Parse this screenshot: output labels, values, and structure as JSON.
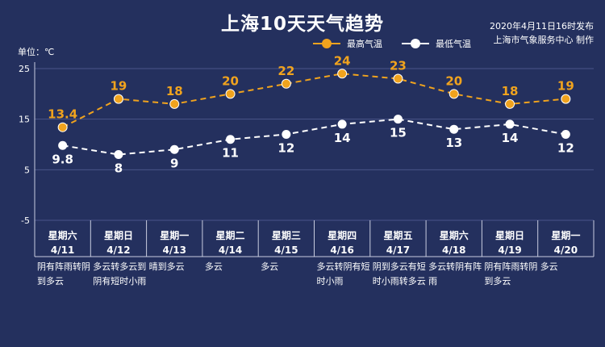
{
  "header": {
    "title": "上海10天天气趋势",
    "issued": "2020年4月11日16时发布",
    "producer": "上海市气象服务中心 制作",
    "unit": "单位：℃"
  },
  "legend": {
    "high_label": "最高气温",
    "low_label": "最低气温"
  },
  "colors": {
    "background": "#24305e",
    "high": "#f0a31e",
    "low": "#ffffff",
    "grid": "#4a5589",
    "axis": "#c9cde0"
  },
  "chart_data": {
    "type": "line",
    "title": "上海10天天气趋势",
    "ylabel": "单位：℃",
    "ylim": [
      -5,
      25
    ],
    "yticks": [
      25,
      15,
      5,
      -5
    ],
    "categories": [
      "4/11",
      "4/12",
      "4/13",
      "4/14",
      "4/15",
      "4/16",
      "4/17",
      "4/18",
      "4/19",
      "4/20"
    ],
    "weekdays": [
      "星期六",
      "星期日",
      "星期一",
      "星期二",
      "星期三",
      "星期四",
      "星期五",
      "星期六",
      "星期日",
      "星期一"
    ],
    "series": [
      {
        "name": "最高气温",
        "values": [
          13.4,
          19,
          18,
          20,
          22,
          24,
          23,
          20,
          18,
          19
        ]
      },
      {
        "name": "最低气温",
        "values": [
          9.8,
          8,
          9,
          11,
          12,
          14,
          15,
          13,
          14,
          12
        ]
      }
    ],
    "conditions": [
      "阴有阵雨转阴到多云",
      "多云转多云到阴有短时小雨",
      "晴到多云",
      "多云",
      "多云",
      "多云转阴有短时小雨",
      "阴到多云有短时小雨转多云",
      "多云转阴有阵雨",
      "阴有阵雨转阴到多云",
      "多云"
    ],
    "legend_position": "top-right",
    "grid": true
  }
}
